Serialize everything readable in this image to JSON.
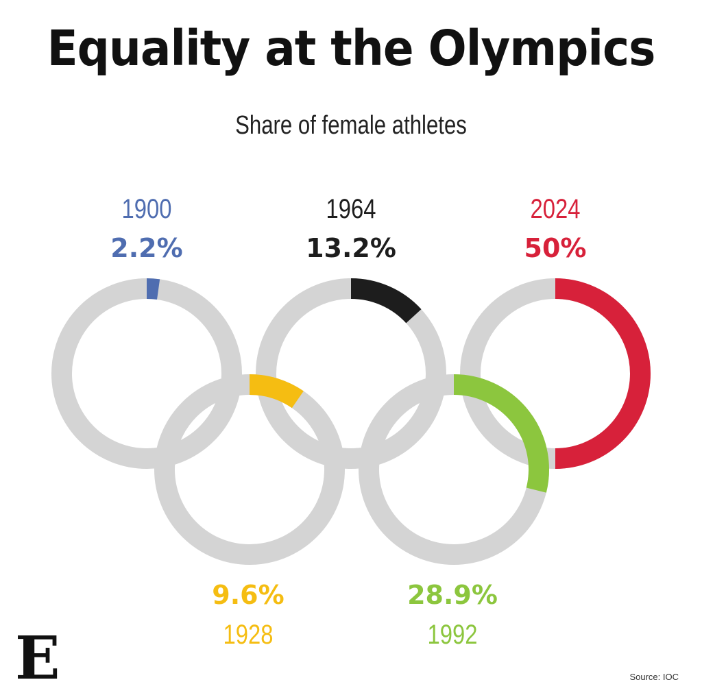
{
  "title": "Equality at the Olympics",
  "subtitle": "Share of female athletes",
  "source": "Source: IOC",
  "logo": "E",
  "colors": {
    "ring_base": "#d4d4d4",
    "blue": "#4f6db0",
    "black": "#1d1d1d",
    "red": "#d7213a",
    "yellow": "#f5bd12",
    "green": "#8cc63e"
  },
  "chart_data": {
    "type": "pie",
    "title": "Equality at the Olympics",
    "subtitle": "Share of female athletes",
    "series": [
      {
        "year": "1900",
        "label": "2.2%",
        "value": 2.2,
        "color": "#4f6db0"
      },
      {
        "year": "1928",
        "label": "9.6%",
        "value": 9.6,
        "color": "#f5bd12"
      },
      {
        "year": "1964",
        "label": "13.2%",
        "value": 13.2,
        "color": "#1d1d1d"
      },
      {
        "year": "1992",
        "label": "28.9%",
        "value": 28.9,
        "color": "#8cc63e"
      },
      {
        "year": "2024",
        "label": "50%",
        "value": 50,
        "color": "#d7213a"
      }
    ]
  }
}
